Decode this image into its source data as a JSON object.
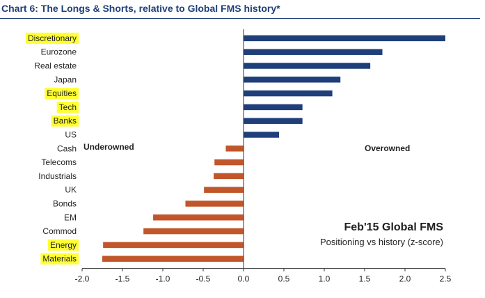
{
  "chart_data": {
    "type": "bar",
    "orientation": "horizontal",
    "title": "Chart 6: The Longs & Shorts, relative to Global FMS history*",
    "categories": [
      "Discretionary",
      "Eurozone",
      "Real estate",
      "Japan",
      "Equities",
      "Tech",
      "Banks",
      "US",
      "Cash",
      "Telecoms",
      "Industrials",
      "UK",
      "Bonds",
      "EM",
      "Commod",
      "Energy",
      "Materials"
    ],
    "values": [
      2.5,
      1.72,
      1.57,
      1.2,
      1.1,
      0.73,
      0.73,
      0.44,
      -0.22,
      -0.36,
      -0.37,
      -0.49,
      -0.72,
      -1.12,
      -1.24,
      -1.74,
      -1.75
    ],
    "highlighted": [
      "Discretionary",
      "Equities",
      "Tech",
      "Banks",
      "Energy",
      "Materials"
    ],
    "xlim": [
      -2.0,
      2.5
    ],
    "xticks": [
      "-2.0",
      "-1.5",
      "-1.0",
      "-0.5",
      "0.0",
      "0.5",
      "1.0",
      "1.5",
      "2.0",
      "2.5"
    ],
    "xlabel": "",
    "ylabel": "",
    "annotations": {
      "left": "Underowned",
      "right": "Overowned",
      "box_title": "Feb'15 Global FMS",
      "box_subtitle": "Positioning vs history (z-score)"
    },
    "colors": {
      "positive": "#1f3f7a",
      "negative": "#c0562a",
      "highlight": "#ffff33",
      "axis": "#333333"
    }
  }
}
